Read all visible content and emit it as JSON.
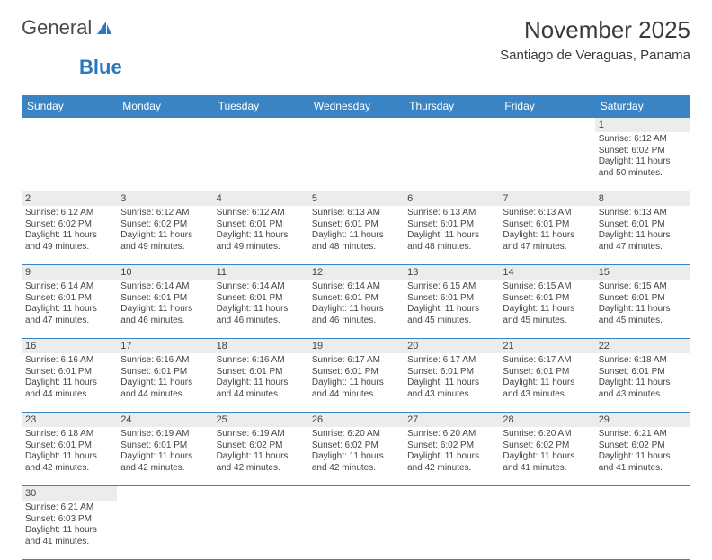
{
  "logo": {
    "textA": "General",
    "textB": "Blue"
  },
  "header": {
    "title": "November 2025",
    "location": "Santiago de Veraguas, Panama"
  },
  "columns": [
    "Sunday",
    "Monday",
    "Tuesday",
    "Wednesday",
    "Thursday",
    "Friday",
    "Saturday"
  ],
  "colors": {
    "header_bg": "#3b84c4",
    "header_text": "#ffffff",
    "daynum_bg": "#ececec",
    "border": "#3b84c4"
  },
  "weeks": [
    [
      {
        "day": "",
        "lines": []
      },
      {
        "day": "",
        "lines": []
      },
      {
        "day": "",
        "lines": []
      },
      {
        "day": "",
        "lines": []
      },
      {
        "day": "",
        "lines": []
      },
      {
        "day": "",
        "lines": []
      },
      {
        "day": "1",
        "lines": [
          "Sunrise: 6:12 AM",
          "Sunset: 6:02 PM",
          "Daylight: 11 hours and 50 minutes."
        ]
      }
    ],
    [
      {
        "day": "2",
        "lines": [
          "Sunrise: 6:12 AM",
          "Sunset: 6:02 PM",
          "Daylight: 11 hours and 49 minutes."
        ]
      },
      {
        "day": "3",
        "lines": [
          "Sunrise: 6:12 AM",
          "Sunset: 6:02 PM",
          "Daylight: 11 hours and 49 minutes."
        ]
      },
      {
        "day": "4",
        "lines": [
          "Sunrise: 6:12 AM",
          "Sunset: 6:01 PM",
          "Daylight: 11 hours and 49 minutes."
        ]
      },
      {
        "day": "5",
        "lines": [
          "Sunrise: 6:13 AM",
          "Sunset: 6:01 PM",
          "Daylight: 11 hours and 48 minutes."
        ]
      },
      {
        "day": "6",
        "lines": [
          "Sunrise: 6:13 AM",
          "Sunset: 6:01 PM",
          "Daylight: 11 hours and 48 minutes."
        ]
      },
      {
        "day": "7",
        "lines": [
          "Sunrise: 6:13 AM",
          "Sunset: 6:01 PM",
          "Daylight: 11 hours and 47 minutes."
        ]
      },
      {
        "day": "8",
        "lines": [
          "Sunrise: 6:13 AM",
          "Sunset: 6:01 PM",
          "Daylight: 11 hours and 47 minutes."
        ]
      }
    ],
    [
      {
        "day": "9",
        "lines": [
          "Sunrise: 6:14 AM",
          "Sunset: 6:01 PM",
          "Daylight: 11 hours and 47 minutes."
        ]
      },
      {
        "day": "10",
        "lines": [
          "Sunrise: 6:14 AM",
          "Sunset: 6:01 PM",
          "Daylight: 11 hours and 46 minutes."
        ]
      },
      {
        "day": "11",
        "lines": [
          "Sunrise: 6:14 AM",
          "Sunset: 6:01 PM",
          "Daylight: 11 hours and 46 minutes."
        ]
      },
      {
        "day": "12",
        "lines": [
          "Sunrise: 6:14 AM",
          "Sunset: 6:01 PM",
          "Daylight: 11 hours and 46 minutes."
        ]
      },
      {
        "day": "13",
        "lines": [
          "Sunrise: 6:15 AM",
          "Sunset: 6:01 PM",
          "Daylight: 11 hours and 45 minutes."
        ]
      },
      {
        "day": "14",
        "lines": [
          "Sunrise: 6:15 AM",
          "Sunset: 6:01 PM",
          "Daylight: 11 hours and 45 minutes."
        ]
      },
      {
        "day": "15",
        "lines": [
          "Sunrise: 6:15 AM",
          "Sunset: 6:01 PM",
          "Daylight: 11 hours and 45 minutes."
        ]
      }
    ],
    [
      {
        "day": "16",
        "lines": [
          "Sunrise: 6:16 AM",
          "Sunset: 6:01 PM",
          "Daylight: 11 hours and 44 minutes."
        ]
      },
      {
        "day": "17",
        "lines": [
          "Sunrise: 6:16 AM",
          "Sunset: 6:01 PM",
          "Daylight: 11 hours and 44 minutes."
        ]
      },
      {
        "day": "18",
        "lines": [
          "Sunrise: 6:16 AM",
          "Sunset: 6:01 PM",
          "Daylight: 11 hours and 44 minutes."
        ]
      },
      {
        "day": "19",
        "lines": [
          "Sunrise: 6:17 AM",
          "Sunset: 6:01 PM",
          "Daylight: 11 hours and 44 minutes."
        ]
      },
      {
        "day": "20",
        "lines": [
          "Sunrise: 6:17 AM",
          "Sunset: 6:01 PM",
          "Daylight: 11 hours and 43 minutes."
        ]
      },
      {
        "day": "21",
        "lines": [
          "Sunrise: 6:17 AM",
          "Sunset: 6:01 PM",
          "Daylight: 11 hours and 43 minutes."
        ]
      },
      {
        "day": "22",
        "lines": [
          "Sunrise: 6:18 AM",
          "Sunset: 6:01 PM",
          "Daylight: 11 hours and 43 minutes."
        ]
      }
    ],
    [
      {
        "day": "23",
        "lines": [
          "Sunrise: 6:18 AM",
          "Sunset: 6:01 PM",
          "Daylight: 11 hours and 42 minutes."
        ]
      },
      {
        "day": "24",
        "lines": [
          "Sunrise: 6:19 AM",
          "Sunset: 6:01 PM",
          "Daylight: 11 hours and 42 minutes."
        ]
      },
      {
        "day": "25",
        "lines": [
          "Sunrise: 6:19 AM",
          "Sunset: 6:02 PM",
          "Daylight: 11 hours and 42 minutes."
        ]
      },
      {
        "day": "26",
        "lines": [
          "Sunrise: 6:20 AM",
          "Sunset: 6:02 PM",
          "Daylight: 11 hours and 42 minutes."
        ]
      },
      {
        "day": "27",
        "lines": [
          "Sunrise: 6:20 AM",
          "Sunset: 6:02 PM",
          "Daylight: 11 hours and 42 minutes."
        ]
      },
      {
        "day": "28",
        "lines": [
          "Sunrise: 6:20 AM",
          "Sunset: 6:02 PM",
          "Daylight: 11 hours and 41 minutes."
        ]
      },
      {
        "day": "29",
        "lines": [
          "Sunrise: 6:21 AM",
          "Sunset: 6:02 PM",
          "Daylight: 11 hours and 41 minutes."
        ]
      }
    ],
    [
      {
        "day": "30",
        "lines": [
          "Sunrise: 6:21 AM",
          "Sunset: 6:03 PM",
          "Daylight: 11 hours and 41 minutes."
        ]
      },
      {
        "day": "",
        "lines": []
      },
      {
        "day": "",
        "lines": []
      },
      {
        "day": "",
        "lines": []
      },
      {
        "day": "",
        "lines": []
      },
      {
        "day": "",
        "lines": []
      },
      {
        "day": "",
        "lines": []
      }
    ]
  ]
}
